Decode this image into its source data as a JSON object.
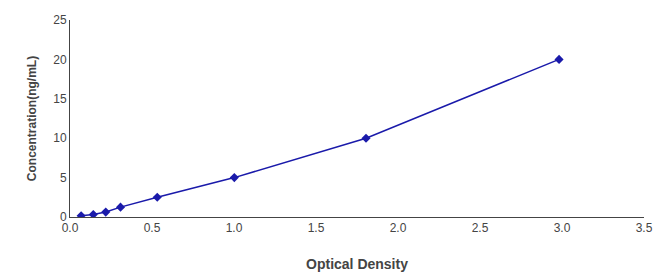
{
  "chart_data": {
    "type": "line",
    "x": [
      0.068,
      0.142,
      0.218,
      0.308,
      0.532,
      1.002,
      1.805,
      2.982
    ],
    "values": [
      0.156,
      0.312,
      0.625,
      1.25,
      2.5,
      5.0,
      10.0,
      20.0
    ],
    "color": "#1a1aaa",
    "marker": "diamond",
    "xlabel": "Optical Density",
    "ylabel": "Concentration(ng/mL)",
    "xlim": [
      0,
      3.5
    ],
    "ylim": [
      0,
      25
    ],
    "xticks": [
      {
        "value": 0,
        "label": "0.0"
      },
      0.5,
      {
        "value": 1,
        "label": "1.0"
      },
      1.5,
      {
        "value": 2,
        "label": "2.0"
      },
      2.5,
      {
        "value": 3,
        "label": "3.0"
      },
      3.5
    ],
    "yticks": [
      0,
      5,
      10,
      15,
      20,
      25
    ],
    "grid": false
  }
}
